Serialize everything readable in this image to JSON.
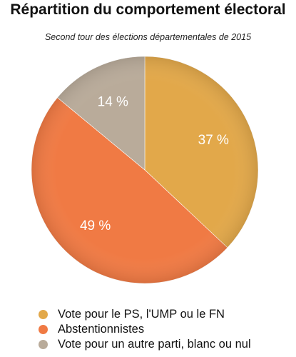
{
  "chart_data": {
    "type": "pie",
    "title": "Répartition du comportement électoral",
    "subtitle": "Second tour des élections départementales de 2015",
    "categories": [
      "Vote pour le PS, l'UMP ou le FN",
      "Abstentionnistes",
      "Vote pour un autre parti, blanc ou nul"
    ],
    "values": [
      37,
      49,
      14
    ],
    "data_labels": [
      "37 %",
      "49 %",
      "14 %"
    ],
    "colors": [
      "#E2A84A",
      "#F07A44",
      "#B9AB9A"
    ],
    "legend_position": "bottom"
  }
}
